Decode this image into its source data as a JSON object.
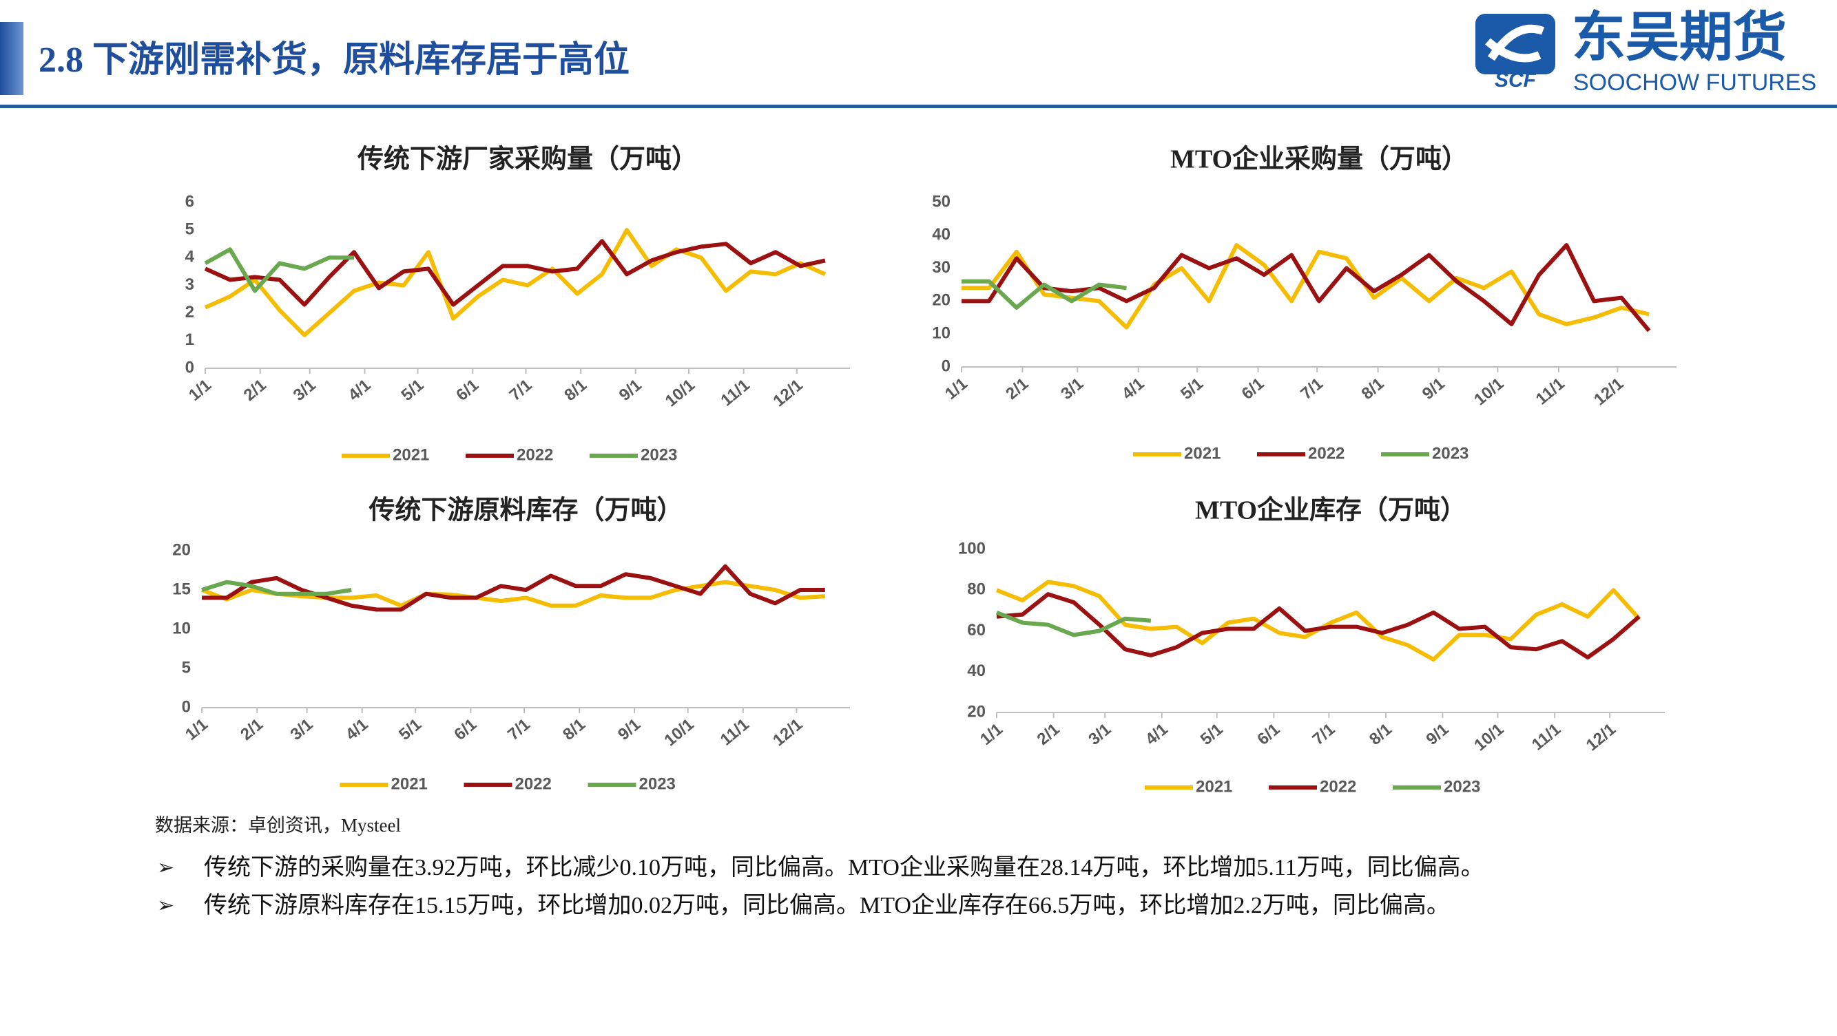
{
  "header": {
    "title": "2.8 下游刚需补货，原料库存居于高位",
    "brand_cn": "东吴期货",
    "brand_en": "SOOCHOW FUTURES",
    "brand_mark": "SCF"
  },
  "chart_data": [
    {
      "type": "line",
      "title": "传统下游厂家采购量（万吨）",
      "x": [
        0,
        2,
        4,
        6,
        8,
        10,
        12,
        14,
        16,
        18,
        20,
        22,
        24,
        26,
        28,
        30,
        32,
        34,
        36,
        38,
        40,
        42,
        44,
        46,
        48,
        50
      ],
      "xlim": [
        0,
        52
      ],
      "xticks": [
        {
          "value": 0,
          "label": "1/1"
        },
        {
          "value": 4.43,
          "label": "2/1"
        },
        {
          "value": 8.43,
          "label": "3/1"
        },
        {
          "value": 12.86,
          "label": "4/1"
        },
        {
          "value": 17.14,
          "label": "5/1"
        },
        {
          "value": 21.57,
          "label": "6/1"
        },
        {
          "value": 25.86,
          "label": "7/1"
        },
        {
          "value": 30.29,
          "label": "8/1"
        },
        {
          "value": 34.71,
          "label": "9/1"
        },
        {
          "value": 39,
          "label": "10/1"
        },
        {
          "value": 43.43,
          "label": "11/1"
        },
        {
          "value": 47.71,
          "label": "12/1"
        }
      ],
      "ylim": [
        0,
        6
      ],
      "yticks": [
        0,
        1,
        2,
        3,
        4,
        5,
        6
      ],
      "series": [
        {
          "name": "2021",
          "color": "#f5bc00",
          "values": [
            2.2,
            2.6,
            3.2,
            2.1,
            1.2,
            2.0,
            2.8,
            3.1,
            3.0,
            4.2,
            1.8,
            2.6,
            3.2,
            3.0,
            3.6,
            2.7,
            3.4,
            5.0,
            3.7,
            4.3,
            4.0,
            2.8,
            3.5,
            3.4,
            3.8,
            3.4
          ]
        },
        {
          "name": "2022",
          "color": "#9b1010",
          "values": [
            3.6,
            3.2,
            3.3,
            3.2,
            2.3,
            3.3,
            4.2,
            2.9,
            3.5,
            3.6,
            2.3,
            3.0,
            3.7,
            3.7,
            3.5,
            3.6,
            4.6,
            3.4,
            3.9,
            4.2,
            4.4,
            4.5,
            3.8,
            4.2,
            3.7,
            3.9
          ]
        },
        {
          "name": "2023",
          "color": "#6aa84f",
          "values": [
            3.8,
            4.3,
            2.8,
            3.8,
            3.6,
            4.0,
            4.0,
            null,
            null,
            null,
            null,
            null,
            null,
            null,
            null,
            null,
            null,
            null,
            null,
            null,
            null,
            null,
            null,
            null,
            null,
            null
          ]
        }
      ]
    },
    {
      "type": "line",
      "title": "MTO企业采购量（万吨）",
      "x": [
        0,
        2,
        4,
        6,
        8,
        10,
        12,
        14,
        16,
        18,
        20,
        22,
        24,
        26,
        28,
        30,
        32,
        34,
        36,
        38,
        40,
        42,
        44,
        46,
        48,
        50
      ],
      "xlim": [
        0,
        52
      ],
      "xticks": [
        {
          "value": 0,
          "label": "1/1"
        },
        {
          "value": 4.43,
          "label": "2/1"
        },
        {
          "value": 8.43,
          "label": "3/1"
        },
        {
          "value": 12.86,
          "label": "4/1"
        },
        {
          "value": 17.14,
          "label": "5/1"
        },
        {
          "value": 21.57,
          "label": "6/1"
        },
        {
          "value": 25.86,
          "label": "7/1"
        },
        {
          "value": 30.29,
          "label": "8/1"
        },
        {
          "value": 34.71,
          "label": "9/1"
        },
        {
          "value": 39,
          "label": "10/1"
        },
        {
          "value": 43.43,
          "label": "11/1"
        },
        {
          "value": 47.71,
          "label": "12/1"
        }
      ],
      "ylim": [
        0,
        50
      ],
      "yticks": [
        0,
        10,
        20,
        30,
        40,
        50
      ],
      "series": [
        {
          "name": "2021",
          "color": "#f5bc00",
          "values": [
            24,
            24,
            35,
            22,
            21,
            20,
            12,
            25,
            30,
            20,
            37,
            31,
            20,
            35,
            33,
            21,
            27,
            20,
            27,
            24,
            29,
            16,
            13,
            15,
            18,
            16
          ]
        },
        {
          "name": "2022",
          "color": "#9b1010",
          "values": [
            20,
            20,
            33,
            24,
            23,
            24,
            20,
            24,
            34,
            30,
            33,
            28,
            34,
            20,
            30,
            23,
            28,
            34,
            26,
            20,
            13,
            28,
            37,
            20,
            21,
            11
          ]
        },
        {
          "name": "2023",
          "color": "#6aa84f",
          "values": [
            26,
            26,
            18,
            25,
            20,
            25,
            24,
            null,
            null,
            null,
            null,
            null,
            null,
            null,
            null,
            null,
            null,
            null,
            null,
            null,
            null,
            null,
            null,
            null,
            null,
            null
          ]
        }
      ]
    },
    {
      "type": "line",
      "title": "传统下游原料库存（万吨）",
      "x": [
        0,
        2,
        4,
        6,
        8,
        10,
        12,
        14,
        16,
        18,
        20,
        22,
        24,
        26,
        28,
        30,
        32,
        34,
        36,
        38,
        40,
        42,
        44,
        46,
        48,
        50
      ],
      "xlim": [
        0,
        52
      ],
      "xticks": [
        {
          "value": 0,
          "label": "1/1"
        },
        {
          "value": 4.43,
          "label": "2/1"
        },
        {
          "value": 8.43,
          "label": "3/1"
        },
        {
          "value": 12.86,
          "label": "4/1"
        },
        {
          "value": 17.14,
          "label": "5/1"
        },
        {
          "value": 21.57,
          "label": "6/1"
        },
        {
          "value": 25.86,
          "label": "7/1"
        },
        {
          "value": 30.29,
          "label": "8/1"
        },
        {
          "value": 34.71,
          "label": "9/1"
        },
        {
          "value": 39,
          "label": "10/1"
        },
        {
          "value": 43.43,
          "label": "11/1"
        },
        {
          "value": 47.71,
          "label": "12/1"
        }
      ],
      "ylim": [
        0,
        20
      ],
      "yticks": [
        0,
        5,
        10,
        15,
        20
      ],
      "series": [
        {
          "name": "2021",
          "color": "#f5bc00",
          "values": [
            15,
            13.8,
            15,
            14.5,
            14.2,
            14,
            14,
            14.3,
            13,
            14.5,
            14.4,
            14,
            13.6,
            14,
            13,
            13,
            14.3,
            14,
            14,
            15,
            15.5,
            16,
            15.5,
            15,
            14,
            14.2
          ]
        },
        {
          "name": "2022",
          "color": "#9b1010",
          "values": [
            14,
            14,
            16,
            16.5,
            15,
            14,
            13,
            12.5,
            12.5,
            14.5,
            14,
            14,
            15.5,
            15,
            16.8,
            15.5,
            15.5,
            17,
            16.5,
            15.5,
            14.5,
            18,
            14.5,
            13.3,
            15,
            15
          ]
        },
        {
          "name": "2023",
          "color": "#6aa84f",
          "values": [
            15,
            16,
            15.5,
            14.5,
            14.5,
            14.5,
            15,
            null,
            null,
            null,
            null,
            null,
            null,
            null,
            null,
            null,
            null,
            null,
            null,
            null,
            null,
            null,
            null,
            null,
            null,
            null
          ]
        }
      ]
    },
    {
      "type": "line",
      "title": "MTO企业库存（万吨）",
      "x": [
        0,
        2,
        4,
        6,
        8,
        10,
        12,
        14,
        16,
        18,
        20,
        22,
        24,
        26,
        28,
        30,
        32,
        34,
        36,
        38,
        40,
        42,
        44,
        46,
        48,
        50
      ],
      "xlim": [
        0,
        52
      ],
      "xticks": [
        {
          "value": 0,
          "label": "1/1"
        },
        {
          "value": 4.43,
          "label": "2/1"
        },
        {
          "value": 8.43,
          "label": "3/1"
        },
        {
          "value": 12.86,
          "label": "4/1"
        },
        {
          "value": 17.14,
          "label": "5/1"
        },
        {
          "value": 21.57,
          "label": "6/1"
        },
        {
          "value": 25.86,
          "label": "7/1"
        },
        {
          "value": 30.29,
          "label": "8/1"
        },
        {
          "value": 34.71,
          "label": "9/1"
        },
        {
          "value": 39,
          "label": "10/1"
        },
        {
          "value": 43.43,
          "label": "11/1"
        },
        {
          "value": 47.71,
          "label": "12/1"
        }
      ],
      "ylim": [
        20,
        100
      ],
      "yticks": [
        20,
        40,
        60,
        80,
        100
      ],
      "series": [
        {
          "name": "2021",
          "color": "#f5bc00",
          "values": [
            80,
            75,
            84,
            82,
            77,
            63,
            61,
            62,
            54,
            64,
            66,
            59,
            57,
            64,
            69,
            57,
            53,
            46,
            58,
            58,
            56,
            68,
            73,
            67,
            80,
            66
          ]
        },
        {
          "name": "2022",
          "color": "#9b1010",
          "values": [
            67,
            68,
            78,
            74,
            63,
            51,
            48,
            52,
            59,
            61,
            61,
            71,
            60,
            62,
            62,
            59,
            63,
            69,
            61,
            62,
            52,
            51,
            55,
            47,
            56,
            67
          ]
        },
        {
          "name": "2023",
          "color": "#6aa84f",
          "values": [
            69,
            64,
            63,
            58,
            60,
            66,
            65,
            null,
            null,
            null,
            null,
            null,
            null,
            null,
            null,
            null,
            null,
            null,
            null,
            null,
            null,
            null,
            null,
            null,
            null,
            null
          ]
        }
      ]
    }
  ],
  "source": "数据来源：卓创资讯，Mysteel",
  "notes": [
    "传统下游的采购量在3.92万吨，环比减少0.10万吨，同比偏高。MTO企业采购量在28.14万吨，环比增加5.11万吨，同比偏高。",
    "传统下游原料库存在15.15万吨，环比增加0.02万吨，同比偏高。MTO企业库存在66.5万吨，环比增加2.2万吨，同比偏高。"
  ]
}
